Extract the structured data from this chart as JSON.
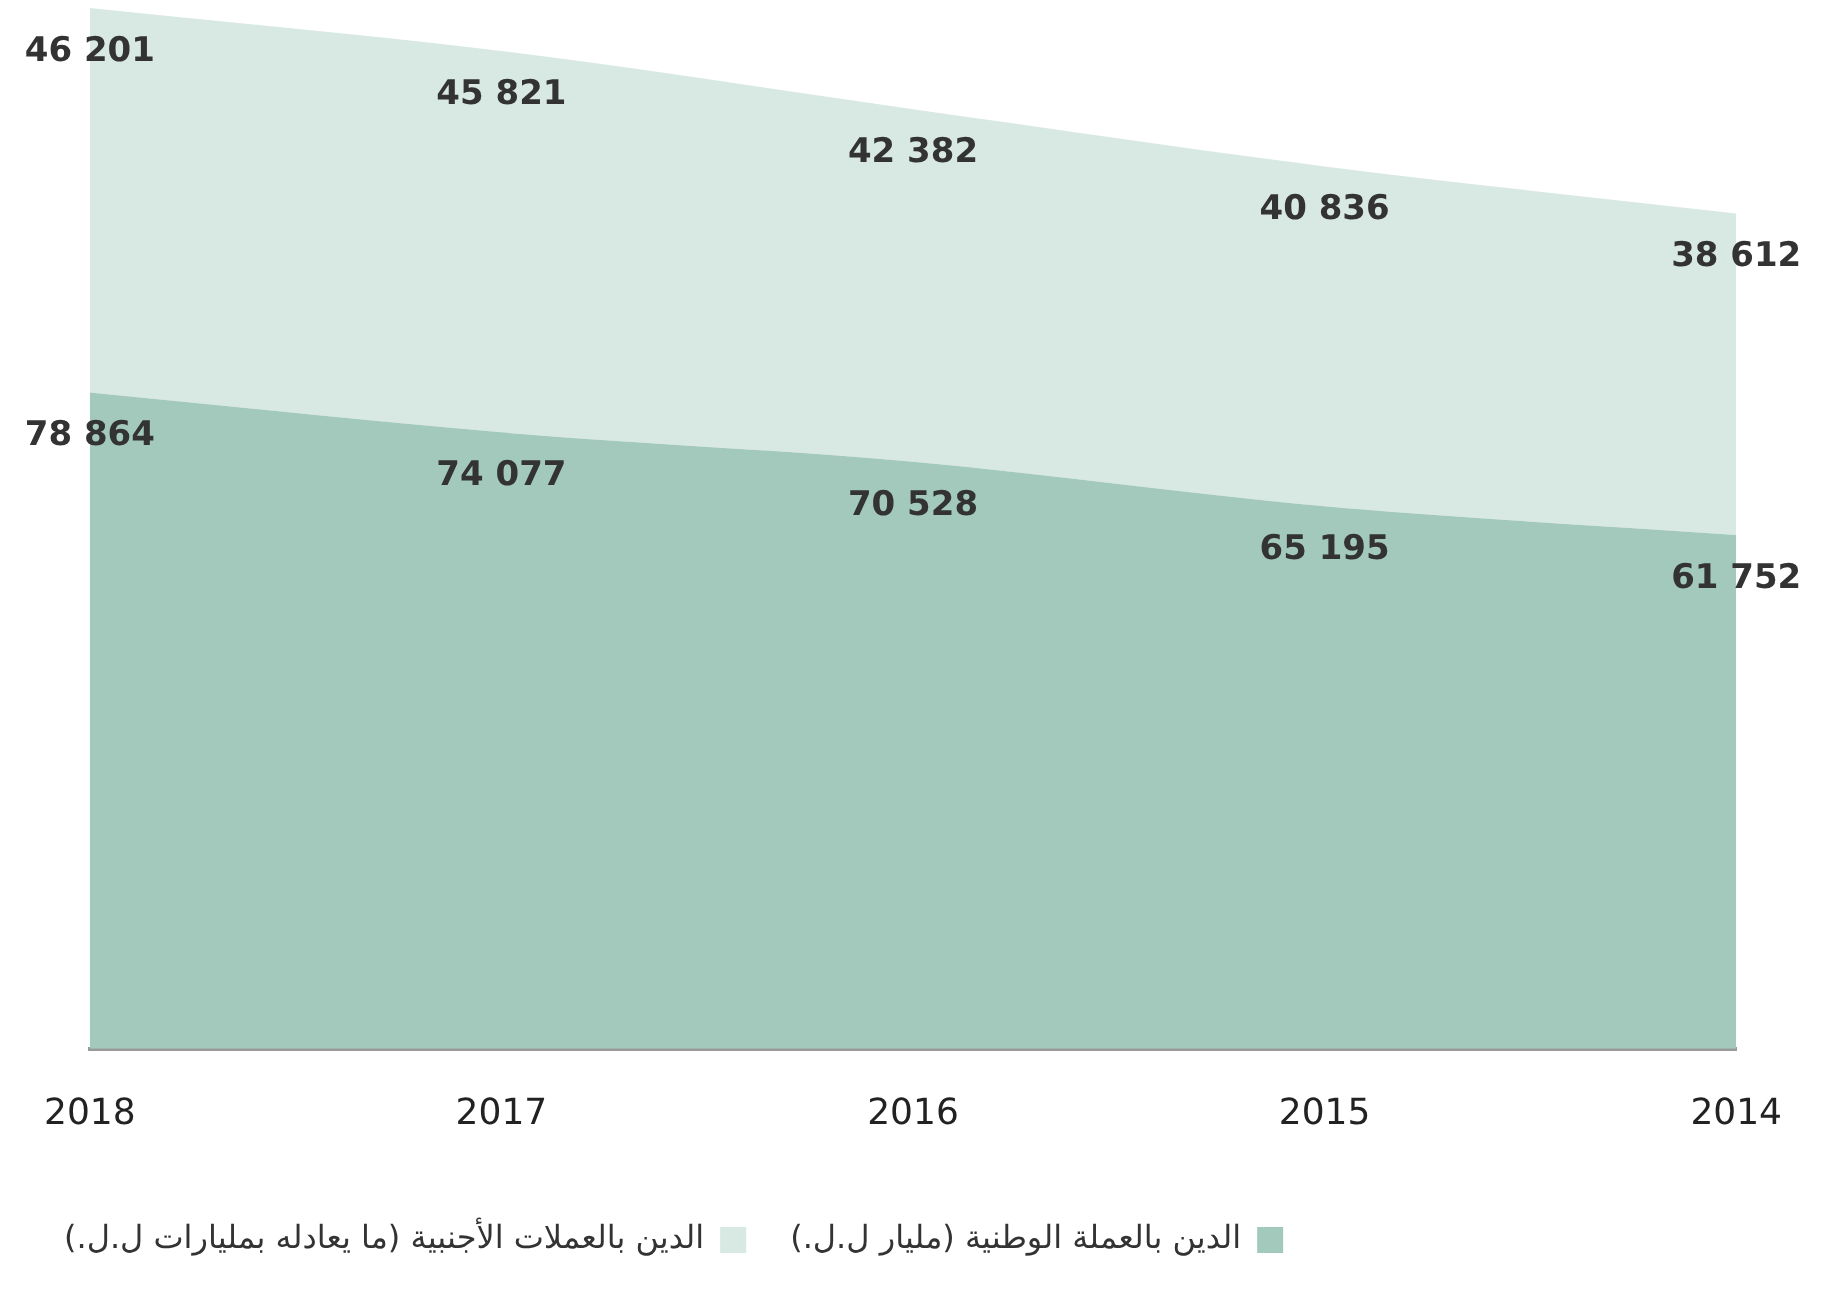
{
  "chart_data": {
    "type": "area",
    "stacked": true,
    "categories": [
      "2018",
      "2017",
      "2016",
      "2015",
      "2014"
    ],
    "series": [
      {
        "name": "الدين بالعملة الوطنية (مليار ل.ل.)",
        "color": "#a3c9bd",
        "values": [
          78864,
          74077,
          70528,
          65195,
          61752
        ],
        "value_labels": [
          "78 864",
          "74 077",
          "70 528",
          "65 195",
          "61 752"
        ]
      },
      {
        "name": "الدين بالعملات الأجنبية (ما يعادله بمليارات ل.ل.)",
        "color": "#d8e8e2",
        "values": [
          46201,
          45821,
          42382,
          40836,
          38612
        ],
        "value_labels": [
          "46 201",
          "45 821",
          "42 382",
          "40 836",
          "38 612"
        ]
      }
    ],
    "legend": "bottom",
    "grid": false
  }
}
